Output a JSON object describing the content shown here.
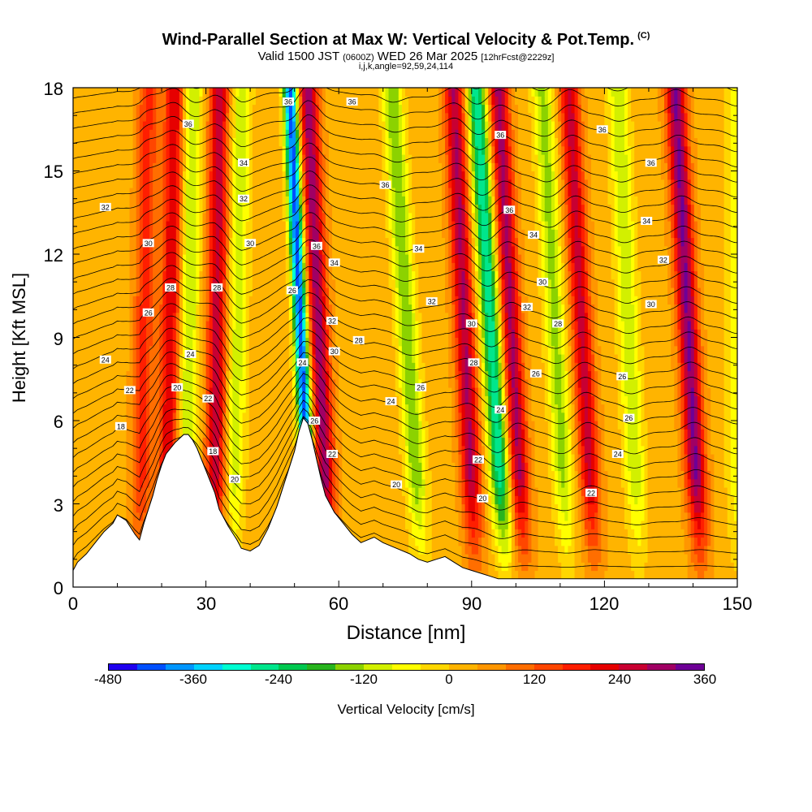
{
  "title": "Wind-Parallel Section at Max W: Vertical Velocity & Pot.Temp.",
  "copyright_mark": "(C)",
  "subtitle": {
    "valid_prefix": "Valid 1500 JST",
    "utc": "(0600Z)",
    "date": "WED 26 Mar 2025",
    "fcst": "[12hrFcst@2229z]"
  },
  "subtitle2": "i,j,k,angle=92,59,24,114",
  "colors": {
    "ramp": [
      "#1f00ef",
      "#0050ff",
      "#0096ff",
      "#00d2ff",
      "#00ffd2",
      "#00e68c",
      "#00c850",
      "#28b41e",
      "#8cd200",
      "#d2f000",
      "#ffff00",
      "#ffd700",
      "#ffb400",
      "#ff9600",
      "#ff6e00",
      "#ff4600",
      "#ff1e00",
      "#e60000",
      "#c80032",
      "#a00064",
      "#6e0096"
    ]
  },
  "chart_data": {
    "type": "heatmap",
    "title": "Wind-Parallel Section at Max W: Vertical Velocity & Pot.Temp.",
    "xlabel": "Distance [nm]",
    "ylabel": "Height [Kft MSL]",
    "xlim": [
      0,
      150
    ],
    "ylim": [
      0,
      18
    ],
    "x_ticks": [
      "0",
      "30",
      "60",
      "90",
      "120",
      "150"
    ],
    "y_ticks": [
      "0",
      "3",
      "6",
      "9",
      "12",
      "15",
      "18"
    ],
    "x_tick_values": [
      0,
      30,
      60,
      90,
      120,
      150
    ],
    "y_tick_values": [
      0,
      3,
      6,
      9,
      12,
      15,
      18
    ],
    "colorbar": {
      "label": "Vertical Velocity [cm/s]",
      "ticks": [
        "-480",
        "-360",
        "-240",
        "-120",
        "0",
        "120",
        "240",
        "360"
      ],
      "tick_values": [
        -480,
        -360,
        -240,
        -120,
        0,
        120,
        240,
        360
      ],
      "range": [
        -480,
        360
      ],
      "step": 40
    },
    "terrain_profile": {
      "x": [
        0,
        1,
        3,
        5,
        7,
        9,
        10,
        12,
        14,
        15,
        16,
        17,
        18,
        19,
        20,
        21,
        23,
        25,
        26,
        27,
        28,
        29,
        30,
        32,
        33,
        35,
        37,
        38,
        40,
        42,
        44,
        46,
        48,
        50,
        51,
        52,
        53,
        54,
        55,
        56,
        57,
        59,
        61,
        63,
        65,
        68,
        70,
        73,
        76,
        78,
        80,
        82,
        84,
        86,
        88,
        90,
        92,
        94,
        96,
        100,
        110,
        120,
        130,
        140,
        150
      ],
      "y": [
        0.6,
        0.9,
        1.2,
        1.6,
        2.0,
        2.3,
        2.6,
        2.4,
        1.9,
        1.7,
        2.3,
        2.8,
        3.3,
        3.9,
        4.4,
        4.8,
        5.2,
        5.5,
        5.5,
        5.3,
        5.0,
        4.6,
        4.2,
        3.4,
        2.8,
        2.2,
        1.7,
        1.4,
        1.3,
        1.5,
        2.1,
        2.9,
        3.9,
        4.9,
        5.6,
        6.1,
        5.9,
        5.3,
        4.6,
        3.9,
        3.3,
        2.7,
        2.3,
        1.9,
        1.6,
        1.8,
        1.6,
        1.4,
        1.2,
        1.0,
        0.9,
        1.0,
        1.1,
        0.9,
        0.7,
        0.6,
        0.5,
        0.4,
        0.3,
        0.3,
        0.3,
        0.3,
        0.3,
        0.3,
        0.3
      ]
    },
    "vertical_velocity_bands": [
      {
        "x_base": 15,
        "x_top": 17,
        "w": 150
      },
      {
        "x_base": 21,
        "x_top": 23,
        "w": 220
      },
      {
        "x_base": 25,
        "x_top": 27,
        "w": -150
      },
      {
        "x_base": 32,
        "x_top": 33,
        "w": 240
      },
      {
        "x_base": 36,
        "x_top": 38,
        "w": -130
      },
      {
        "x_base": 54,
        "x_top": 49,
        "w": -460
      },
      {
        "x_base": 58,
        "x_top": 53,
        "w": 280
      },
      {
        "x_base": 79,
        "x_top": 72,
        "w": -180
      },
      {
        "x_base": 91,
        "x_top": 86,
        "w": 260
      },
      {
        "x_base": 98,
        "x_top": 91,
        "w": -300
      },
      {
        "x_base": 102,
        "x_top": 96,
        "w": 270
      },
      {
        "x_base": 112,
        "x_top": 106,
        "w": -160
      },
      {
        "x_base": 118,
        "x_top": 112,
        "w": 230
      },
      {
        "x_base": 128,
        "x_top": 123,
        "w": -140
      },
      {
        "x_base": 142,
        "x_top": 136,
        "w": 300
      },
      {
        "x_base": 150,
        "x_top": 150,
        "w": -100
      }
    ],
    "contour_labels": [
      {
        "text": "36",
        "x": 26,
        "y": 16.7
      },
      {
        "text": "34",
        "x": 38.5,
        "y": 15.3
      },
      {
        "text": "32",
        "x": 7.3,
        "y": 13.7
      },
      {
        "text": "32",
        "x": 38.5,
        "y": 14.0
      },
      {
        "text": "30",
        "x": 17,
        "y": 12.4
      },
      {
        "text": "30",
        "x": 40,
        "y": 12.4
      },
      {
        "text": "28",
        "x": 22,
        "y": 10.8
      },
      {
        "text": "28",
        "x": 32.5,
        "y": 10.8
      },
      {
        "text": "26",
        "x": 17,
        "y": 9.9
      },
      {
        "text": "24",
        "x": 7.3,
        "y": 8.2
      },
      {
        "text": "24",
        "x": 26.5,
        "y": 8.4
      },
      {
        "text": "22",
        "x": 12.8,
        "y": 7.1
      },
      {
        "text": "22",
        "x": 30.5,
        "y": 6.8
      },
      {
        "text": "20",
        "x": 23.5,
        "y": 7.2
      },
      {
        "text": "18",
        "x": 10.8,
        "y": 5.8
      },
      {
        "text": "18",
        "x": 31.6,
        "y": 4.9
      },
      {
        "text": "20",
        "x": 36.5,
        "y": 3.9
      },
      {
        "text": "36",
        "x": 48.6,
        "y": 17.5
      },
      {
        "text": "36",
        "x": 63,
        "y": 17.5
      },
      {
        "text": "36",
        "x": 70.5,
        "y": 14.5
      },
      {
        "text": "36",
        "x": 55,
        "y": 12.3
      },
      {
        "text": "34",
        "x": 59,
        "y": 11.7
      },
      {
        "text": "26",
        "x": 49.5,
        "y": 10.7
      },
      {
        "text": "32",
        "x": 58.5,
        "y": 9.6
      },
      {
        "text": "30",
        "x": 59,
        "y": 8.5
      },
      {
        "text": "28",
        "x": 64.5,
        "y": 8.9
      },
      {
        "text": "24",
        "x": 51.8,
        "y": 8.1
      },
      {
        "text": "26",
        "x": 54.5,
        "y": 6.0
      },
      {
        "text": "22",
        "x": 58.5,
        "y": 4.8
      },
      {
        "text": "24",
        "x": 71.8,
        "y": 6.7
      },
      {
        "text": "20",
        "x": 73,
        "y": 3.7
      },
      {
        "text": "34",
        "x": 78,
        "y": 12.2
      },
      {
        "text": "32",
        "x": 81,
        "y": 10.3
      },
      {
        "text": "26",
        "x": 78.5,
        "y": 7.2
      },
      {
        "text": "36",
        "x": 96.5,
        "y": 16.3
      },
      {
        "text": "36",
        "x": 98.5,
        "y": 13.6
      },
      {
        "text": "34",
        "x": 104,
        "y": 12.7
      },
      {
        "text": "30",
        "x": 90,
        "y": 9.5
      },
      {
        "text": "28",
        "x": 90.5,
        "y": 8.1
      },
      {
        "text": "22",
        "x": 91.5,
        "y": 4.6
      },
      {
        "text": "24",
        "x": 96.5,
        "y": 6.4
      },
      {
        "text": "20",
        "x": 92.5,
        "y": 3.2
      },
      {
        "text": "30",
        "x": 106,
        "y": 11.0
      },
      {
        "text": "32",
        "x": 102.5,
        "y": 10.1
      },
      {
        "text": "28",
        "x": 109.5,
        "y": 9.5
      },
      {
        "text": "26",
        "x": 104.5,
        "y": 7.7
      },
      {
        "text": "22",
        "x": 117,
        "y": 3.4
      },
      {
        "text": "36",
        "x": 119.5,
        "y": 16.5
      },
      {
        "text": "36",
        "x": 130.5,
        "y": 15.3
      },
      {
        "text": "34",
        "x": 129.5,
        "y": 13.2
      },
      {
        "text": "32",
        "x": 133.3,
        "y": 11.8
      },
      {
        "text": "30",
        "x": 130.5,
        "y": 10.2
      },
      {
        "text": "26",
        "x": 124,
        "y": 7.6
      },
      {
        "text": "26",
        "x": 125.5,
        "y": 6.1
      },
      {
        "text": "24",
        "x": 123,
        "y": 4.8
      }
    ]
  }
}
